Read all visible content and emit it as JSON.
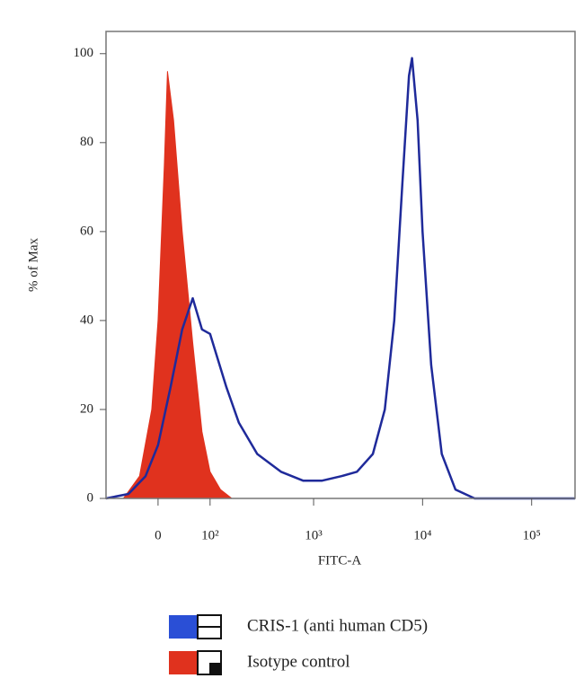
{
  "chart_data": {
    "type": "line",
    "xlabel": "FITC-A",
    "ylabel": "% of Max",
    "xscale": "asinh",
    "xlim": [
      -100,
      250000
    ],
    "xticks": [
      0,
      {
        "value": 100,
        "label": "10²"
      },
      {
        "value": 1000,
        "label": "10³"
      },
      {
        "value": 10000,
        "label": "10⁴"
      },
      {
        "value": 100000,
        "label": "10⁵"
      }
    ],
    "ylim": [
      0,
      105
    ],
    "yticks": [
      0,
      20,
      40,
      60,
      80,
      100
    ],
    "grid": false,
    "series": [
      {
        "name": "CRIS-1 (anti human CD5)",
        "color": "#1f2a9a",
        "fill": false,
        "x": [
          -100,
          -50,
          -20,
          0,
          20,
          40,
          60,
          80,
          100,
          150,
          200,
          300,
          500,
          800,
          1200,
          1800,
          2500,
          3500,
          4500,
          5500,
          6500,
          7500,
          8000,
          9000,
          10000,
          12000,
          15000,
          20000,
          30000,
          100000,
          250000
        ],
        "values": [
          0,
          1,
          5,
          12,
          25,
          38,
          45,
          38,
          37,
          25,
          17,
          10,
          6,
          4,
          4,
          5,
          6,
          10,
          20,
          40,
          70,
          95,
          99,
          85,
          60,
          30,
          10,
          2,
          0,
          0,
          0
        ]
      },
      {
        "name": "Isotype control",
        "color": "#e0321e",
        "fill": true,
        "x": [
          -60,
          -30,
          -10,
          0,
          10,
          15,
          25,
          40,
          60,
          80,
          100,
          130,
          170
        ],
        "values": [
          0,
          5,
          20,
          40,
          75,
          96,
          85,
          60,
          35,
          15,
          6,
          2,
          0
        ]
      }
    ]
  }
}
